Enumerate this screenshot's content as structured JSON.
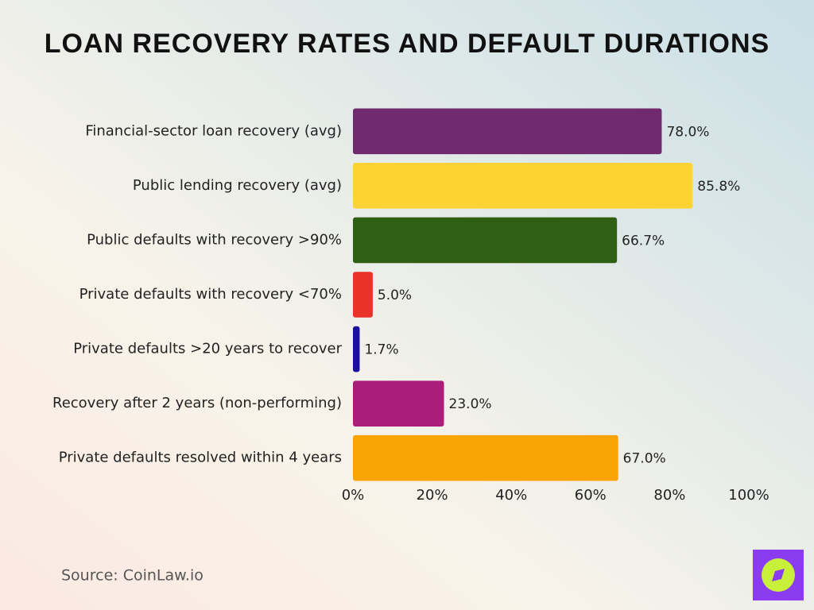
{
  "chart_data": {
    "type": "bar",
    "orientation": "horizontal",
    "title": "Loan Recovery Rates and Default Durations",
    "categories": [
      "Financial-sector loan recovery (avg)",
      "Public lending recovery (avg)",
      "Public defaults with recovery >90%",
      "Private defaults with recovery <70%",
      "Private defaults >20 years to recover",
      "Recovery after 2 years (non-performing)",
      "Private defaults resolved within 4 years"
    ],
    "values": [
      78.0,
      85.8,
      66.7,
      5.0,
      1.7,
      23.0,
      67.0
    ],
    "value_labels": [
      "78.0%",
      "85.8%",
      "66.7%",
      "5.0%",
      "1.7%",
      "23.0%",
      "67.0%"
    ],
    "colors": [
      "#722a6e",
      "#fdd233",
      "#2f5f12",
      "#e8322a",
      "#1a0f9e",
      "#ac1d7a",
      "#fba406"
    ],
    "xlim": [
      0,
      100
    ],
    "xticks": [
      {
        "value": 0,
        "label": "0%"
      },
      {
        "value": 20,
        "label": "20%"
      },
      {
        "value": 40,
        "label": "40%"
      },
      {
        "value": 60,
        "label": "60%"
      },
      {
        "value": 80,
        "label": "80%"
      },
      {
        "value": 100,
        "label": "100%"
      }
    ],
    "grid": false,
    "source": "Source: CoinLaw.io"
  }
}
